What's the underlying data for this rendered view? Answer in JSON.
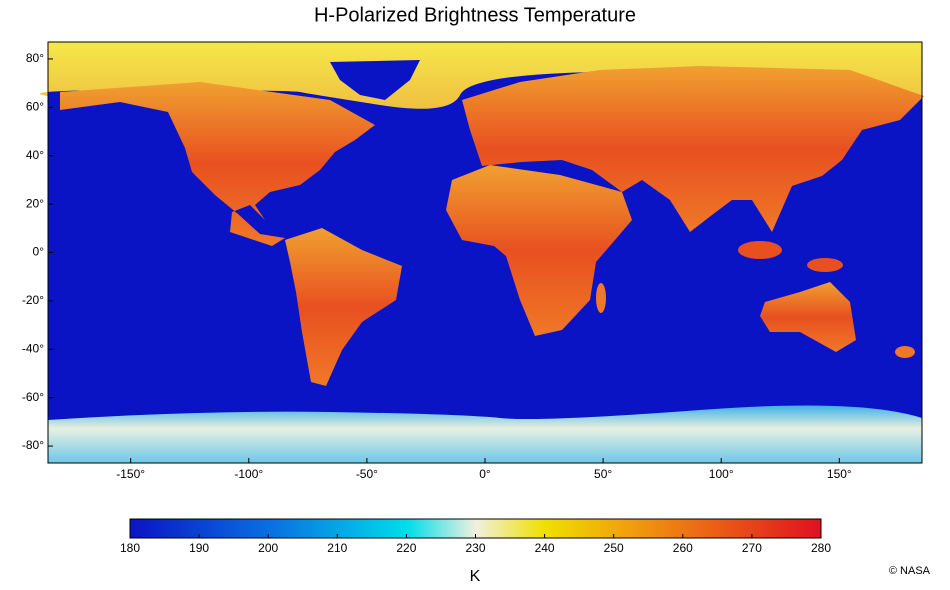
{
  "title": "H-Polarized Brightness Temperature",
  "map": {
    "xlim": [
      -185,
      185
    ],
    "ylim": [
      -87,
      87
    ],
    "xticks": [
      {
        "value": -150,
        "label": "-150°"
      },
      {
        "value": -100,
        "label": "-100°"
      },
      {
        "value": -50,
        "label": "-50°"
      },
      {
        "value": 0,
        "label": "0°"
      },
      {
        "value": 50,
        "label": "50°"
      },
      {
        "value": 100,
        "label": "100°"
      },
      {
        "value": 150,
        "label": "150°"
      }
    ],
    "yticks": [
      {
        "value": 80,
        "label": "80°"
      },
      {
        "value": 60,
        "label": "60°"
      },
      {
        "value": 40,
        "label": "40°"
      },
      {
        "value": 20,
        "label": "20°"
      },
      {
        "value": 0,
        "label": "0°"
      },
      {
        "value": -20,
        "label": "-20°"
      },
      {
        "value": -40,
        "label": "-40°"
      },
      {
        "value": -60,
        "label": "-60°"
      },
      {
        "value": -80,
        "label": "-80°"
      }
    ]
  },
  "colorbar": {
    "range": [
      180,
      280
    ],
    "ticks": [
      180,
      190,
      200,
      210,
      220,
      230,
      240,
      250,
      260,
      270,
      280
    ],
    "label": "K"
  },
  "credit": "© NASA"
}
